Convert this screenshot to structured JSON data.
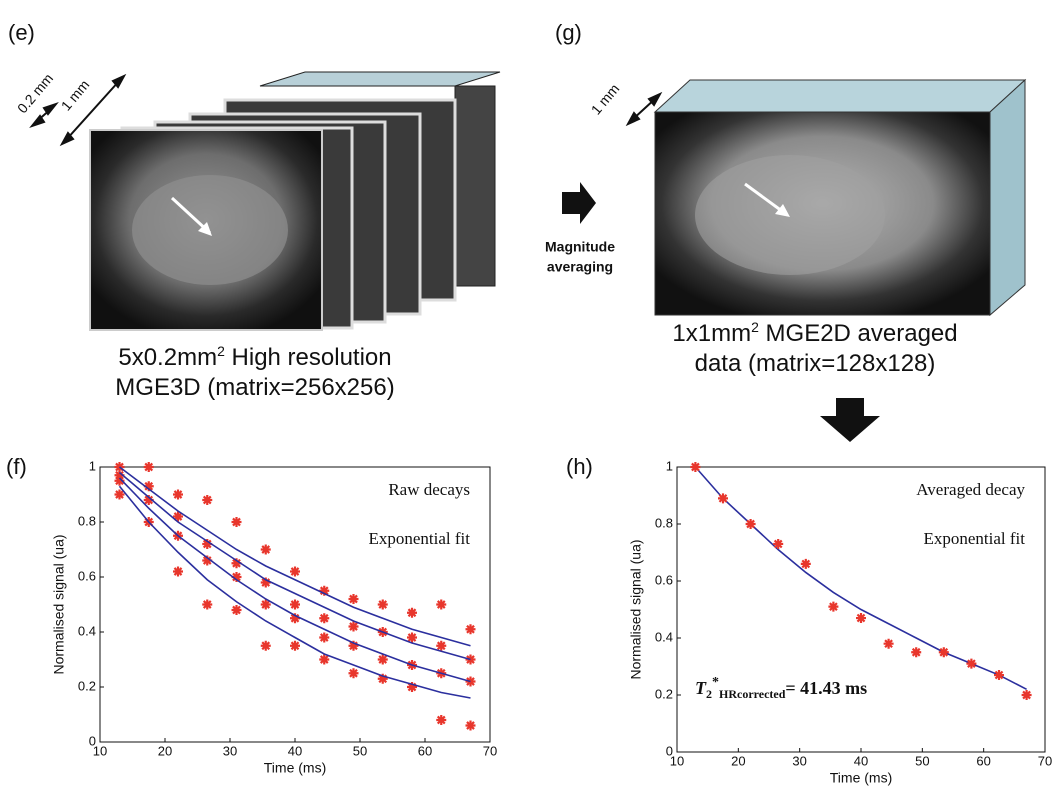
{
  "figure": {
    "panel_e": {
      "label": "(e)",
      "dim_small": "0.2 mm",
      "dim_large": "1 mm",
      "caption": {
        "line1_before": "5x0.2mm",
        "line1_sup": "2",
        "line1_after": "High resolution",
        "line2": "MGE3D (matrix=256x256)"
      }
    },
    "arrow_label": {
      "line1": "Magnitude",
      "line2": "averaging"
    },
    "panel_g": {
      "label": "(g)",
      "dim": "1 mm",
      "caption": {
        "line1_before": "1x1mm",
        "line1_sup": "2",
        "line1_after": "MGE2D averaged",
        "line2": "data (matrix=128x128)"
      }
    },
    "panel_f_label": "(f)",
    "panel_h_label": "(h)"
  },
  "chart_data": [
    {
      "type": "line",
      "xlabel": "Time (ms)",
      "ylabel": "Normalised signal (ua)",
      "legend": [
        "Raw decays",
        "Exponential fit"
      ],
      "legend_position": "upper right",
      "x": [
        13,
        17.5,
        22,
        26.5,
        31,
        35.5,
        40,
        44.5,
        49,
        53.5,
        58,
        62.5,
        67
      ],
      "series": [
        {
          "mode": "markers",
          "color": "#e8362c",
          "values": [
            1,
            1,
            0.9,
            0.88,
            0.8,
            0.7,
            0.62,
            0.55,
            0.52,
            0.5,
            0.47,
            0.5,
            0.41
          ]
        },
        {
          "mode": "markers",
          "color": "#e8362c",
          "values": [
            0.97,
            0.93,
            0.82,
            0.72,
            0.65,
            0.58,
            0.5,
            0.45,
            0.42,
            0.4,
            0.38,
            0.35,
            0.3
          ]
        },
        {
          "mode": "markers",
          "color": "#e8362c",
          "values": [
            0.95,
            0.88,
            0.75,
            0.66,
            0.6,
            0.5,
            0.45,
            0.38,
            0.35,
            0.3,
            0.28,
            0.25,
            0.22
          ]
        },
        {
          "mode": "markers",
          "color": "#e8362c",
          "values": [
            0.9,
            0.8,
            0.62,
            0.5,
            0.48,
            0.35,
            0.35,
            0.3,
            0.25,
            0.23,
            0.2,
            0.08,
            0.06
          ]
        },
        {
          "mode": "line",
          "color": "#2b2f9e",
          "values": [
            1,
            0.92,
            0.84,
            0.77,
            0.7,
            0.64,
            0.59,
            0.54,
            0.49,
            0.45,
            0.41,
            0.38,
            0.35
          ]
        },
        {
          "mode": "line",
          "color": "#2b2f9e",
          "values": [
            0.98,
            0.89,
            0.8,
            0.73,
            0.66,
            0.59,
            0.54,
            0.49,
            0.44,
            0.4,
            0.36,
            0.33,
            0.3
          ]
        },
        {
          "mode": "line",
          "color": "#2b2f9e",
          "values": [
            0.96,
            0.85,
            0.75,
            0.67,
            0.59,
            0.52,
            0.46,
            0.41,
            0.36,
            0.32,
            0.28,
            0.25,
            0.22
          ]
        },
        {
          "mode": "line",
          "color": "#2b2f9e",
          "values": [
            0.93,
            0.8,
            0.69,
            0.59,
            0.51,
            0.44,
            0.38,
            0.32,
            0.28,
            0.24,
            0.21,
            0.18,
            0.16
          ]
        }
      ],
      "xlim": [
        10,
        70
      ],
      "xticks": [
        10,
        20,
        30,
        40,
        50,
        60,
        70
      ],
      "ylim": [
        0,
        1
      ],
      "yticks": [
        0,
        0.2,
        0.4,
        0.6,
        0.8,
        1
      ]
    },
    {
      "type": "line",
      "xlabel": "Time (ms)",
      "ylabel": "Normalised signal (ua)",
      "legend": [
        "Averaged decay",
        "Exponential fit"
      ],
      "legend_position": "upper right",
      "annotation": {
        "symbol": "T",
        "subscript": "2",
        "superscript": "*",
        "subscript2": "HRcorrected",
        "text": "= 41.43 ms"
      },
      "x": [
        13,
        17.5,
        22,
        26.5,
        31,
        35.5,
        40,
        44.5,
        49,
        53.5,
        58,
        62.5,
        67
      ],
      "series": [
        {
          "mode": "line",
          "color": "#2b2f9e",
          "values": [
            1,
            0.89,
            0.8,
            0.71,
            0.63,
            0.56,
            0.5,
            0.45,
            0.4,
            0.35,
            0.31,
            0.27,
            0.22
          ]
        },
        {
          "mode": "markers",
          "color": "#e8362c",
          "values": [
            1,
            0.89,
            0.8,
            0.73,
            0.66,
            0.51,
            0.47,
            0.38,
            0.35,
            0.35,
            0.31,
            0.27,
            0.2
          ]
        }
      ],
      "xlim": [
        10,
        70
      ],
      "xticks": [
        10,
        20,
        30,
        40,
        50,
        60,
        70
      ],
      "ylim": [
        0,
        1
      ],
      "yticks": [
        0,
        0.2,
        0.4,
        0.6,
        0.8,
        1
      ]
    }
  ]
}
